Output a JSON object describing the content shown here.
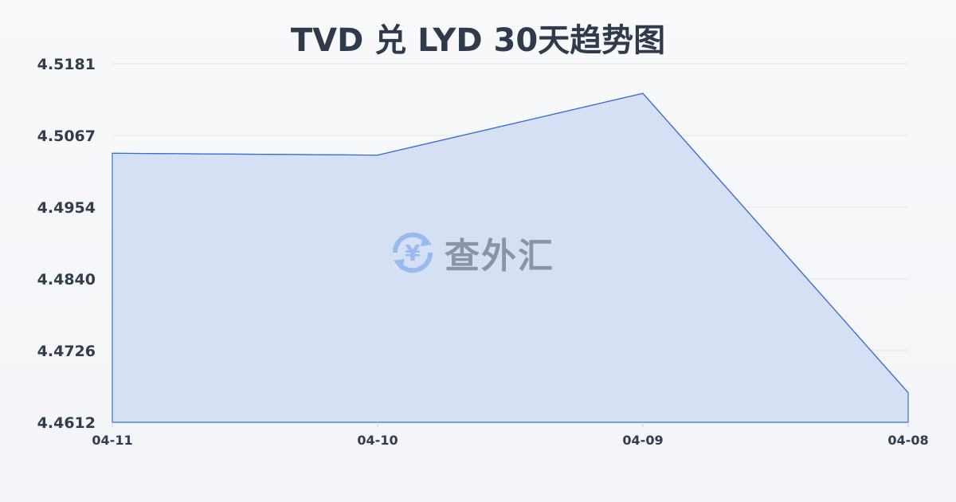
{
  "chart_data": {
    "type": "area",
    "title": "TVD 兑 LYD 30天趋势图",
    "categories": [
      "04-11",
      "04-10",
      "04-09",
      "04-08"
    ],
    "series": [
      {
        "values": [
          4.5039,
          4.5036,
          4.5134,
          4.4659
        ]
      }
    ],
    "yticks": [
      "4.5181",
      "4.5067",
      "4.4954",
      "4.4840",
      "4.4726",
      "4.4612"
    ],
    "ylim": [
      4.4612,
      4.5181
    ],
    "grid": true,
    "line_color": "#3a6fd0",
    "fill_color": "#d5e0f5"
  },
  "watermark": {
    "text": "查外汇",
    "icon": "yen-exchange-icon",
    "symbol": "¥"
  }
}
